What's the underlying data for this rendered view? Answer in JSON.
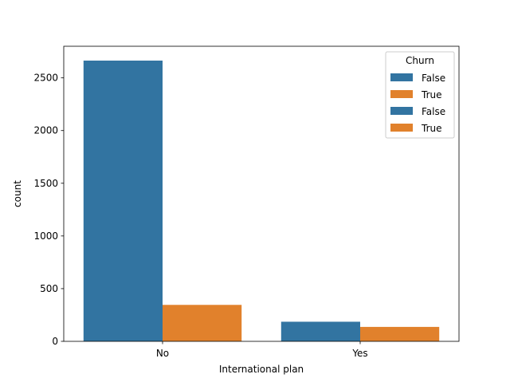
{
  "chart_data": {
    "type": "bar",
    "xlabel": "International plan",
    "ylabel": "count",
    "categories": [
      "No",
      "Yes"
    ],
    "ylim": [
      0,
      2800
    ],
    "yticks": [
      0,
      500,
      1000,
      1500,
      2000,
      2500
    ],
    "series": [
      {
        "name": "False",
        "color": "#3274a1",
        "values": [
          2664,
          186
        ]
      },
      {
        "name": "True",
        "color": "#e1812c",
        "values": [
          346,
          137
        ]
      }
    ],
    "legend": {
      "title": "Churn",
      "placement": "top-right",
      "entries": [
        {
          "label": "False",
          "color": "#3274a1"
        },
        {
          "label": "True",
          "color": "#e1812c"
        },
        {
          "label": "False",
          "color": "#3274a1"
        },
        {
          "label": "True",
          "color": "#e1812c"
        }
      ]
    }
  }
}
